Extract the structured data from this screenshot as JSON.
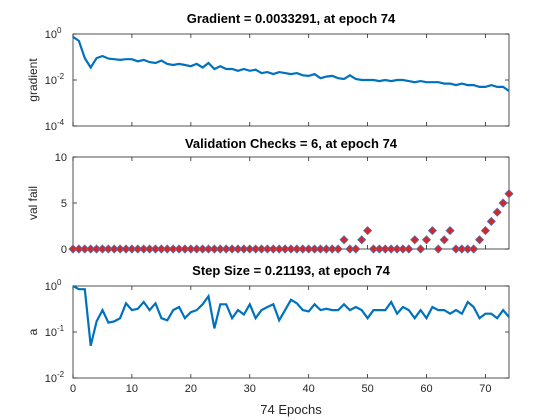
{
  "colors": {
    "line": "#0072BD",
    "marker_fill": "#D62728",
    "marker_edge": "#4A6FB0"
  },
  "xlabel": "74 Epochs",
  "chart_data": [
    {
      "type": "line",
      "title": "Gradient = 0.0033291, at epoch 74",
      "ylabel": "gradient",
      "yscale": "log",
      "ylim": [
        0.0001,
        1
      ],
      "xlim": [
        0,
        74
      ],
      "ytick_labels": [
        [
          "10",
          "0"
        ],
        [
          "10",
          "-2"
        ],
        [
          "10",
          "-4"
        ]
      ],
      "x": [
        0,
        1,
        2,
        3,
        4,
        5,
        6,
        7,
        8,
        9,
        10,
        11,
        12,
        13,
        14,
        15,
        16,
        17,
        18,
        19,
        20,
        21,
        22,
        23,
        24,
        25,
        26,
        27,
        28,
        29,
        30,
        31,
        32,
        33,
        34,
        35,
        36,
        37,
        38,
        39,
        40,
        41,
        42,
        43,
        44,
        45,
        46,
        47,
        48,
        49,
        50,
        51,
        52,
        53,
        54,
        55,
        56,
        57,
        58,
        59,
        60,
        61,
        62,
        63,
        64,
        65,
        66,
        67,
        68,
        69,
        70,
        71,
        72,
        73,
        74
      ],
      "series": [
        {
          "values": [
            0.75,
            0.5,
            0.09,
            0.035,
            0.09,
            0.11,
            0.085,
            0.08,
            0.075,
            0.08,
            0.08,
            0.065,
            0.075,
            0.06,
            0.055,
            0.07,
            0.05,
            0.045,
            0.05,
            0.045,
            0.04,
            0.05,
            0.035,
            0.055,
            0.03,
            0.04,
            0.03,
            0.03,
            0.025,
            0.03,
            0.025,
            0.028,
            0.02,
            0.022,
            0.018,
            0.022,
            0.02,
            0.018,
            0.02,
            0.016,
            0.015,
            0.018,
            0.012,
            0.014,
            0.015,
            0.012,
            0.011,
            0.016,
            0.011,
            0.01,
            0.01,
            0.01,
            0.009,
            0.01,
            0.009,
            0.01,
            0.01,
            0.009,
            0.008,
            0.009,
            0.008,
            0.008,
            0.008,
            0.007,
            0.007,
            0.006,
            0.007,
            0.006,
            0.006,
            0.005,
            0.005,
            0.006,
            0.005,
            0.005,
            0.0033291
          ]
        }
      ]
    },
    {
      "type": "scatter",
      "title": "Validation Checks = 6, at epoch 74",
      "ylabel": "val fail",
      "ylim": [
        0,
        10
      ],
      "xlim": [
        0,
        74
      ],
      "ytick_labels": [
        "10",
        "5",
        "0"
      ],
      "x": [
        0,
        1,
        2,
        3,
        4,
        5,
        6,
        7,
        8,
        9,
        10,
        11,
        12,
        13,
        14,
        15,
        16,
        17,
        18,
        19,
        20,
        21,
        22,
        23,
        24,
        25,
        26,
        27,
        28,
        29,
        30,
        31,
        32,
        33,
        34,
        35,
        36,
        37,
        38,
        39,
        40,
        41,
        42,
        43,
        44,
        45,
        46,
        47,
        48,
        49,
        50,
        51,
        52,
        53,
        54,
        55,
        56,
        57,
        58,
        59,
        60,
        61,
        62,
        63,
        64,
        65,
        66,
        67,
        68,
        69,
        70,
        71,
        72,
        73,
        74
      ],
      "series": [
        {
          "values": [
            0,
            0,
            0,
            0,
            0,
            0,
            0,
            0,
            0,
            0,
            0,
            0,
            0,
            0,
            0,
            0,
            0,
            0,
            0,
            0,
            0,
            0,
            0,
            0,
            0,
            0,
            0,
            0,
            0,
            0,
            0,
            0,
            0,
            0,
            0,
            0,
            0,
            0,
            0,
            0,
            0,
            0,
            0,
            0,
            0,
            0,
            1,
            0,
            0,
            1,
            2,
            0,
            0,
            0,
            0,
            0,
            0,
            0,
            1,
            0,
            1,
            2,
            0,
            1,
            2,
            0,
            0,
            0,
            0,
            1,
            2,
            3,
            4,
            5,
            6
          ]
        }
      ]
    },
    {
      "type": "line",
      "title": "Step Size = 0.21193, at epoch 74",
      "ylabel": "a",
      "yscale": "log",
      "ylim": [
        0.01,
        1
      ],
      "xlim": [
        0,
        74
      ],
      "ytick_labels": [
        [
          "10",
          "0"
        ],
        [
          "10",
          "-1"
        ],
        [
          "10",
          "-2"
        ]
      ],
      "xtick_labels": [
        "0",
        "10",
        "20",
        "30",
        "40",
        "50",
        "60",
        "70"
      ],
      "x": [
        0,
        1,
        2,
        3,
        4,
        5,
        6,
        7,
        8,
        9,
        10,
        11,
        12,
        13,
        14,
        15,
        16,
        17,
        18,
        19,
        20,
        21,
        22,
        23,
        24,
        25,
        26,
        27,
        28,
        29,
        30,
        31,
        32,
        33,
        34,
        35,
        36,
        37,
        38,
        39,
        40,
        41,
        42,
        43,
        44,
        45,
        46,
        47,
        48,
        49,
        50,
        51,
        52,
        53,
        54,
        55,
        56,
        57,
        58,
        59,
        60,
        61,
        62,
        63,
        64,
        65,
        66,
        67,
        68,
        69,
        70,
        71,
        72,
        73,
        74
      ],
      "series": [
        {
          "values": [
            1.0,
            0.85,
            0.85,
            0.05,
            0.17,
            0.3,
            0.16,
            0.17,
            0.2,
            0.42,
            0.3,
            0.32,
            0.45,
            0.3,
            0.42,
            0.2,
            0.18,
            0.3,
            0.35,
            0.2,
            0.27,
            0.3,
            0.4,
            0.6,
            0.12,
            0.4,
            0.4,
            0.2,
            0.3,
            0.24,
            0.4,
            0.2,
            0.3,
            0.35,
            0.4,
            0.18,
            0.3,
            0.5,
            0.42,
            0.3,
            0.28,
            0.4,
            0.3,
            0.32,
            0.3,
            0.3,
            0.4,
            0.3,
            0.35,
            0.3,
            0.2,
            0.3,
            0.3,
            0.3,
            0.45,
            0.25,
            0.35,
            0.3,
            0.2,
            0.3,
            0.2,
            0.35,
            0.3,
            0.3,
            0.25,
            0.3,
            0.25,
            0.45,
            0.35,
            0.2,
            0.25,
            0.25,
            0.2,
            0.3,
            0.21193
          ]
        }
      ]
    }
  ]
}
